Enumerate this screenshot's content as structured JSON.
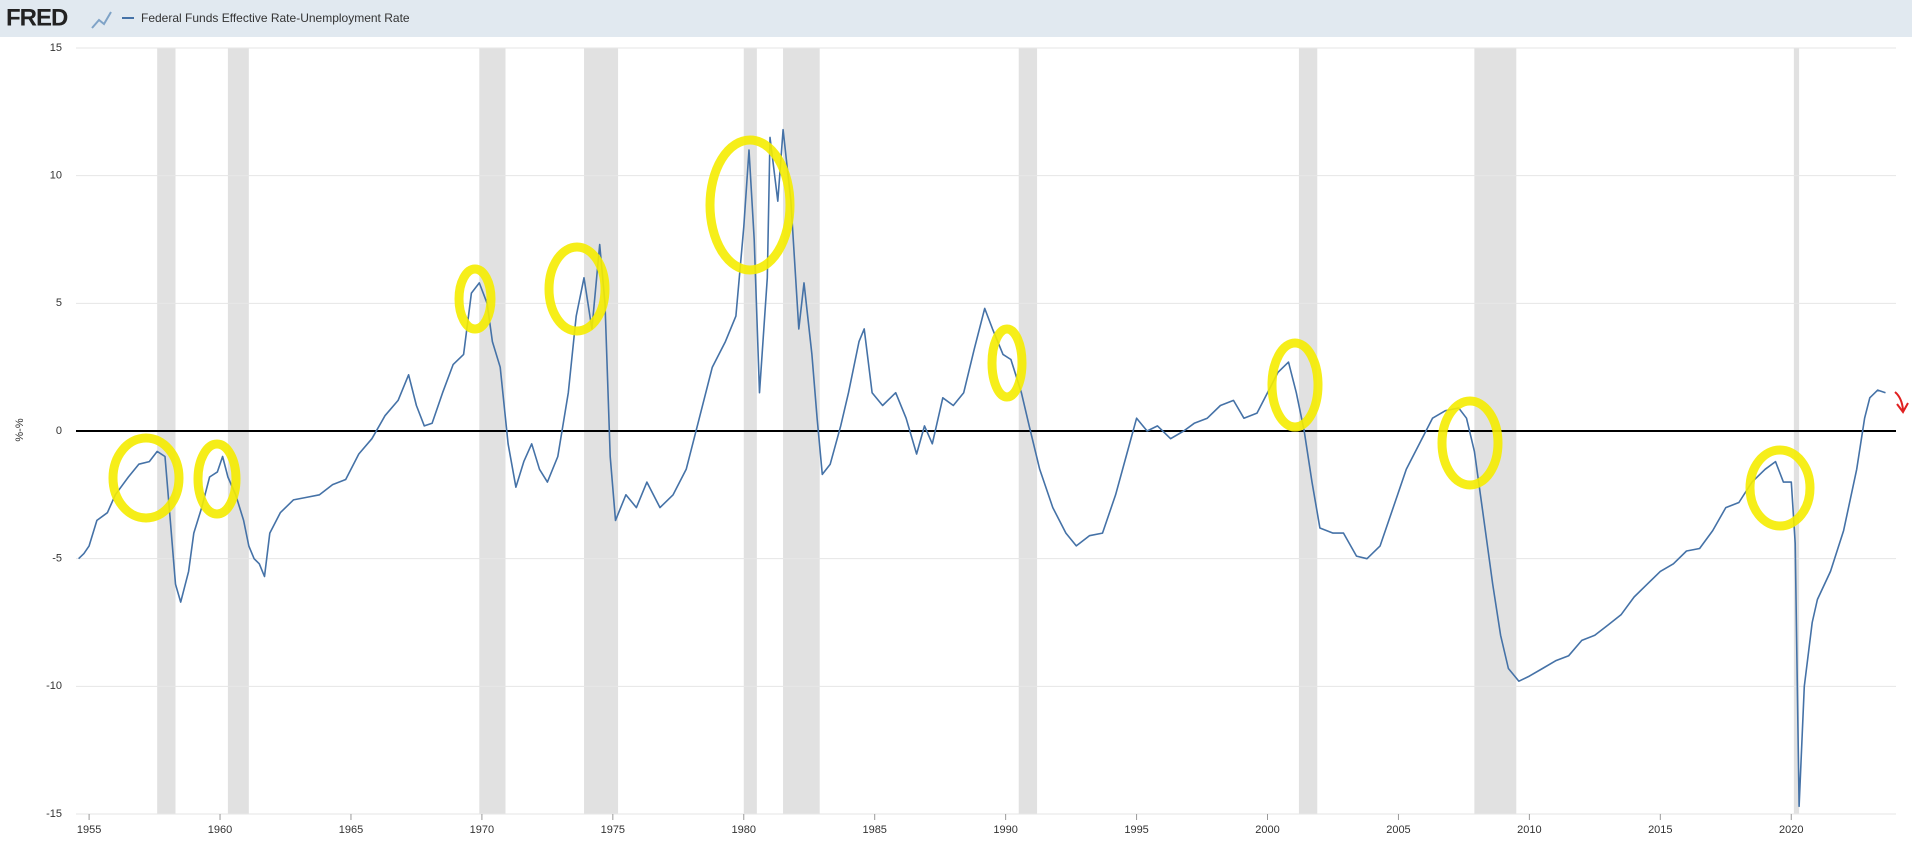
{
  "header": {
    "logo": "FRED"
  },
  "chart_data": {
    "type": "line",
    "y_label": "%-%",
    "xlim": [
      1954.5,
      2024
    ],
    "xticks": [
      1955,
      1960,
      1965,
      1970,
      1975,
      1980,
      1985,
      1990,
      1995,
      2000,
      2005,
      2010,
      2015,
      2020
    ],
    "ylim": [
      -15,
      15
    ],
    "yticks": [
      -15,
      -10,
      -5,
      0,
      5,
      10,
      15
    ],
    "grid": true,
    "reference_line": 0,
    "recessions": [
      [
        1957.6,
        1958.3
      ],
      [
        1960.3,
        1961.1
      ],
      [
        1969.9,
        1970.9
      ],
      [
        1973.9,
        1975.2
      ],
      [
        1980.0,
        1980.5
      ],
      [
        1981.5,
        1982.9
      ],
      [
        1990.5,
        1991.2
      ],
      [
        2001.2,
        2001.9
      ],
      [
        2007.9,
        2009.5
      ],
      [
        2020.1,
        2020.3
      ]
    ],
    "series": [
      {
        "name": "Federal Funds Effective Rate-Unemployment Rate",
        "color": "#4572a7",
        "x": [
          1954.6,
          1954.8,
          1955.0,
          1955.3,
          1955.7,
          1956.0,
          1956.5,
          1956.9,
          1957.3,
          1957.6,
          1957.9,
          1958.1,
          1958.3,
          1958.5,
          1958.8,
          1959.0,
          1959.3,
          1959.6,
          1959.9,
          1960.1,
          1960.3,
          1960.6,
          1960.9,
          1961.1,
          1961.3,
          1961.5,
          1961.7,
          1961.9,
          1962.3,
          1962.8,
          1963.3,
          1963.8,
          1964.3,
          1964.8,
          1965.3,
          1965.8,
          1966.3,
          1966.8,
          1967.2,
          1967.5,
          1967.8,
          1968.1,
          1968.5,
          1968.9,
          1969.3,
          1969.6,
          1969.9,
          1970.2,
          1970.4,
          1970.7,
          1971.0,
          1971.3,
          1971.6,
          1971.9,
          1972.2,
          1972.5,
          1972.9,
          1973.3,
          1973.6,
          1973.9,
          1974.2,
          1974.5,
          1974.7,
          1974.9,
          1975.1,
          1975.5,
          1975.9,
          1976.3,
          1976.8,
          1977.3,
          1977.8,
          1978.3,
          1978.8,
          1979.3,
          1979.7,
          1980.0,
          1980.2,
          1980.4,
          1980.6,
          1980.9,
          1981.0,
          1981.3,
          1981.5,
          1981.8,
          1982.1,
          1982.3,
          1982.6,
          1982.8,
          1983.0,
          1983.3,
          1983.7,
          1984.0,
          1984.4,
          1984.6,
          1984.9,
          1985.3,
          1985.8,
          1986.2,
          1986.6,
          1986.9,
          1987.2,
          1987.6,
          1988.0,
          1988.4,
          1988.8,
          1989.2,
          1989.5,
          1989.9,
          1990.2,
          1990.6,
          1990.9,
          1991.3,
          1991.8,
          1992.3,
          1992.7,
          1993.2,
          1993.7,
          1994.2,
          1994.6,
          1995.0,
          1995.4,
          1995.8,
          1996.3,
          1996.8,
          1997.2,
          1997.7,
          1998.2,
          1998.7,
          1999.1,
          1999.6,
          2000.0,
          2000.4,
          2000.8,
          2001.1,
          2001.4,
          2001.7,
          2002.0,
          2002.5,
          2002.9,
          2003.4,
          2003.8,
          2004.3,
          2004.8,
          2005.3,
          2005.8,
          2006.3,
          2006.8,
          2007.3,
          2007.6,
          2007.9,
          2008.2,
          2008.6,
          2008.9,
          2009.2,
          2009.6,
          2010.0,
          2010.5,
          2011.0,
          2011.5,
          2012.0,
          2012.5,
          2013.0,
          2013.5,
          2014.0,
          2014.5,
          2015.0,
          2015.5,
          2016.0,
          2016.5,
          2017.0,
          2017.5,
          2018.0,
          2018.5,
          2019.0,
          2019.4,
          2019.7,
          2020.0,
          2020.15,
          2020.3,
          2020.5,
          2020.8,
          2021.0,
          2021.5,
          2022.0,
          2022.5,
          2022.8,
          2023.0,
          2023.3,
          2023.6
        ],
        "values": [
          -5.0,
          -4.8,
          -4.5,
          -3.5,
          -3.2,
          -2.5,
          -1.8,
          -1.3,
          -1.2,
          -0.8,
          -1.0,
          -3.5,
          -6.0,
          -6.7,
          -5.5,
          -4.0,
          -3.0,
          -1.8,
          -1.6,
          -1.0,
          -1.8,
          -2.5,
          -3.5,
          -4.5,
          -5.0,
          -5.2,
          -5.7,
          -4.0,
          -3.2,
          -2.7,
          -2.6,
          -2.5,
          -2.1,
          -1.9,
          -0.9,
          -0.3,
          0.6,
          1.2,
          2.2,
          1.0,
          0.2,
          0.3,
          1.5,
          2.6,
          3.0,
          5.4,
          5.8,
          5.0,
          3.5,
          2.5,
          -0.5,
          -2.2,
          -1.2,
          -0.5,
          -1.5,
          -2.0,
          -1.0,
          1.5,
          4.5,
          6.0,
          4.0,
          7.3,
          5.0,
          -1.0,
          -3.5,
          -2.5,
          -3.0,
          -2.0,
          -3.0,
          -2.5,
          -1.5,
          0.5,
          2.5,
          3.5,
          4.5,
          8.0,
          11.0,
          7.5,
          1.5,
          6.0,
          11.5,
          9.0,
          11.8,
          9.0,
          4.0,
          5.8,
          3.0,
          0.5,
          -1.7,
          -1.3,
          0.2,
          1.5,
          3.5,
          4.0,
          1.5,
          1.0,
          1.5,
          0.5,
          -0.9,
          0.2,
          -0.5,
          1.3,
          1.0,
          1.5,
          3.2,
          4.8,
          4.0,
          3.0,
          2.8,
          1.5,
          0.2,
          -1.5,
          -3.0,
          -4.0,
          -4.5,
          -4.1,
          -4.0,
          -2.5,
          -1.0,
          0.5,
          0.0,
          0.2,
          -0.3,
          0.0,
          0.3,
          0.5,
          1.0,
          1.2,
          0.5,
          0.7,
          1.5,
          2.3,
          2.7,
          1.5,
          0.0,
          -2.0,
          -3.8,
          -4.0,
          -4.0,
          -4.9,
          -5.0,
          -4.5,
          -3.0,
          -1.5,
          -0.5,
          0.5,
          0.8,
          0.9,
          0.5,
          -0.8,
          -3.0,
          -6.0,
          -8.0,
          -9.3,
          -9.8,
          -9.6,
          -9.3,
          -9.0,
          -8.8,
          -8.2,
          -8.0,
          -7.6,
          -7.2,
          -6.5,
          -6.0,
          -5.5,
          -5.2,
          -4.7,
          -4.6,
          -3.9,
          -3.0,
          -2.8,
          -2.0,
          -1.5,
          -1.2,
          -2.0,
          -2.0,
          -4.4,
          -14.7,
          -10.0,
          -7.5,
          -6.6,
          -5.5,
          -3.9,
          -1.5,
          0.5,
          1.3,
          1.6,
          1.5
        ]
      }
    ]
  }
}
